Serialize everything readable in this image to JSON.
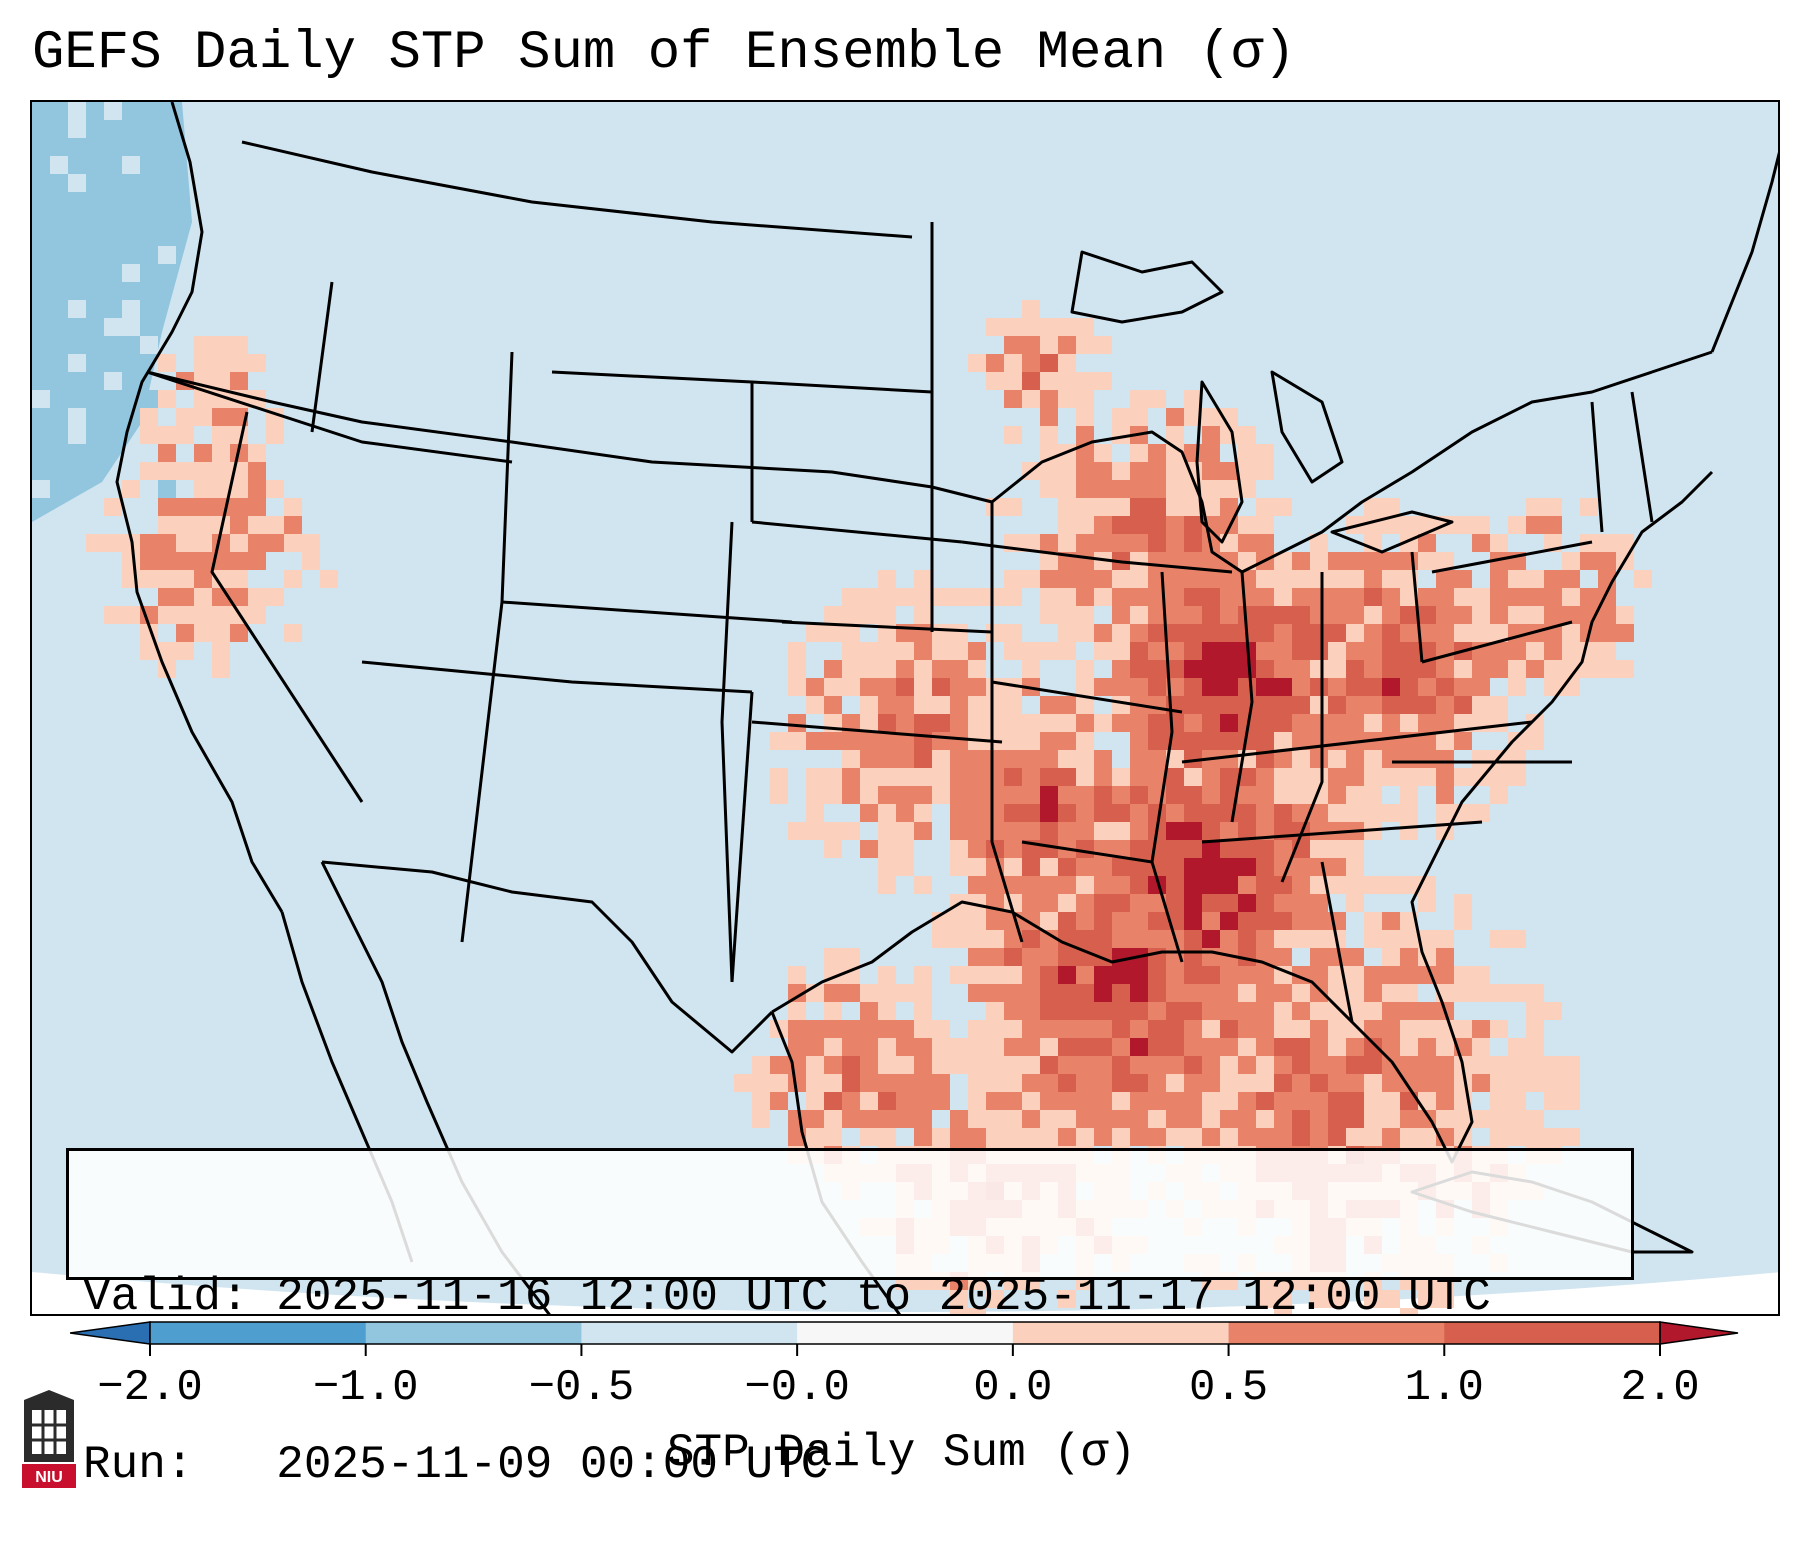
{
  "title": "GEFS Daily STP Sum of Ensemble Mean (σ)",
  "info": {
    "valid_label": "Valid:",
    "valid_value": "2025-11-16 12:00 UTC to 2025-11-17 12:00 UTC",
    "run_label": "Run:",
    "run_value": "2025-11-09 00:00 UTC"
  },
  "colorbar": {
    "label": "STP Daily Sum (σ)",
    "ticks": [
      "−2.0",
      "−1.0",
      "−0.5",
      "−0.0",
      "0.0",
      "0.5",
      "1.0",
      "2.0"
    ],
    "colors": [
      "#2b6fb3",
      "#4f9ed0",
      "#92c5de",
      "#d1e5f0",
      "#f7f7f7",
      "#fbd0bc",
      "#e8836a",
      "#d6604d",
      "#b2182b"
    ]
  },
  "map_colors": {
    "background": "#d1e5f0",
    "ocean_low": "#92c5de",
    "light": "#fbd0bc",
    "medium": "#e8836a",
    "high": "#d6604d",
    "max": "#b2182b"
  },
  "logo": {
    "text": "NIU"
  }
}
